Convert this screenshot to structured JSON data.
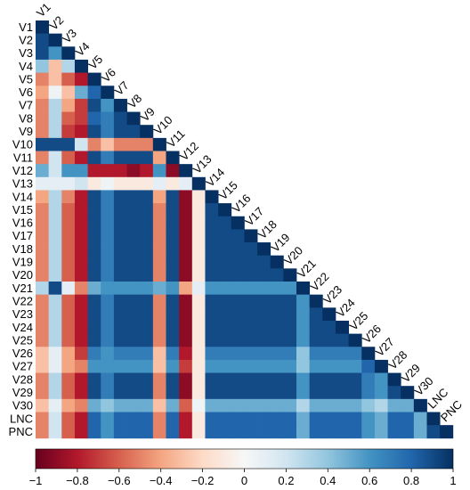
{
  "chart_data": {
    "type": "heatmap",
    "subtype": "lower-triangular correlation matrix",
    "variables": [
      "V1",
      "V2",
      "V3",
      "V4",
      "V5",
      "V6",
      "V7",
      "V8",
      "V9",
      "V10",
      "V11",
      "V12",
      "V13",
      "V14",
      "V15",
      "V16",
      "V17",
      "V18",
      "V19",
      "V20",
      "V21",
      "V22",
      "V23",
      "V24",
      "V25",
      "V26",
      "V27",
      "V28",
      "V29",
      "V30",
      "LNC",
      "PNC"
    ],
    "colorbar": {
      "range": [
        -1,
        1
      ],
      "ticks": [
        -1,
        -0.8,
        -0.6,
        -0.4,
        -0.2,
        0,
        0.2,
        0.4,
        0.6,
        0.8,
        1
      ],
      "tick_labels": [
        "−1",
        "−0.8",
        "−0.6",
        "−0.4",
        "−0.2",
        "0",
        "0.2",
        "0.4",
        "0.6",
        "0.8",
        "1"
      ],
      "colorscale": [
        "#67001f",
        "#b2182b",
        "#d6604d",
        "#f4a582",
        "#fddbc7",
        "#f7f7f7",
        "#d1e5f0",
        "#92c5de",
        "#4393c3",
        "#2166ac",
        "#053061"
      ],
      "position": "bottom"
    },
    "note": "values are approximate, estimated from cell colors; one row per variable, lower triangle including diagonal",
    "matrix": [
      [
        1
      ],
      [
        0.9,
        1
      ],
      [
        0.9,
        0.6,
        1
      ],
      [
        0.4,
        -0.3,
        0.3,
        1
      ],
      [
        -0.5,
        -0.3,
        -0.6,
        -0.8,
        1
      ],
      [
        -0.4,
        0.05,
        -0.3,
        0.5,
        0.8,
        1
      ],
      [
        -0.5,
        0.3,
        -0.4,
        -0.7,
        0.9,
        0.6,
        1
      ],
      [
        -0.5,
        0.3,
        -0.6,
        -0.7,
        0.8,
        0.7,
        0.9,
        1
      ],
      [
        -0.5,
        0.3,
        -0.7,
        -0.8,
        0.9,
        0.7,
        0.9,
        0.9,
        1
      ],
      [
        0.9,
        0.9,
        0.9,
        0.2,
        -0.5,
        -0.3,
        -0.5,
        -0.5,
        -0.5,
        1
      ],
      [
        -0.5,
        0.2,
        -0.6,
        -0.8,
        0.9,
        0.7,
        0.9,
        0.9,
        0.9,
        -0.4,
        1
      ],
      [
        0.5,
        0.2,
        0.6,
        0.6,
        -0.8,
        -0.8,
        -0.8,
        -0.9,
        -0.8,
        0.6,
        -0.9,
        1
      ],
      [
        0.1,
        0.1,
        0.1,
        0.2,
        -0.1,
        0.05,
        -0.1,
        -0.1,
        -0.1,
        0.1,
        -0.1,
        0.1,
        1
      ],
      [
        -0.4,
        0.3,
        -0.5,
        -0.8,
        0.9,
        0.7,
        0.9,
        0.9,
        0.9,
        -0.4,
        0.9,
        -0.9,
        -0.1,
        1
      ],
      [
        -0.5,
        0.3,
        -0.6,
        -0.8,
        0.9,
        0.7,
        0.9,
        0.9,
        0.9,
        -0.5,
        0.9,
        -0.9,
        -0.1,
        0.9,
        1
      ],
      [
        -0.5,
        0.3,
        -0.6,
        -0.8,
        0.9,
        0.7,
        0.9,
        0.9,
        0.9,
        -0.5,
        0.9,
        -0.9,
        -0.1,
        0.9,
        0.9,
        1
      ],
      [
        -0.5,
        0.3,
        -0.6,
        -0.8,
        0.9,
        0.7,
        0.9,
        0.9,
        0.9,
        -0.5,
        0.9,
        -0.9,
        -0.1,
        0.9,
        0.9,
        0.9,
        1
      ],
      [
        -0.5,
        0.3,
        -0.6,
        -0.8,
        0.9,
        0.7,
        0.9,
        0.9,
        0.9,
        -0.5,
        0.9,
        -0.9,
        -0.1,
        0.9,
        0.9,
        0.9,
        0.9,
        1
      ],
      [
        -0.5,
        0.3,
        -0.6,
        -0.8,
        0.9,
        0.7,
        0.9,
        0.9,
        0.9,
        -0.5,
        0.9,
        -0.9,
        -0.1,
        0.9,
        0.9,
        0.9,
        0.9,
        0.9,
        1
      ],
      [
        -0.5,
        0.3,
        -0.6,
        -0.8,
        0.9,
        0.7,
        0.9,
        0.9,
        0.9,
        -0.5,
        0.9,
        -0.9,
        -0.1,
        0.9,
        0.9,
        0.9,
        0.9,
        0.9,
        0.9,
        1
      ],
      [
        0.3,
        0.9,
        0.1,
        -0.5,
        0.5,
        0.6,
        0.6,
        0.6,
        0.6,
        0.5,
        0.6,
        -0.4,
        0.1,
        0.6,
        0.6,
        0.6,
        0.6,
        0.6,
        0.6,
        0.6,
        1
      ],
      [
        -0.5,
        0.3,
        -0.6,
        -0.8,
        0.9,
        0.7,
        0.9,
        0.9,
        0.9,
        -0.5,
        0.9,
        -0.9,
        -0.1,
        0.9,
        0.9,
        0.9,
        0.9,
        0.9,
        0.9,
        0.9,
        0.6,
        1
      ],
      [
        -0.5,
        0.3,
        -0.6,
        -0.8,
        0.9,
        0.7,
        0.9,
        0.9,
        0.9,
        -0.5,
        0.9,
        -0.9,
        -0.1,
        0.9,
        0.9,
        0.9,
        0.9,
        0.9,
        0.9,
        0.9,
        0.6,
        0.9,
        1
      ],
      [
        -0.5,
        0.3,
        -0.6,
        -0.8,
        0.9,
        0.7,
        0.9,
        0.9,
        0.9,
        -0.5,
        0.9,
        -0.9,
        -0.1,
        0.9,
        0.9,
        0.9,
        0.9,
        0.9,
        0.9,
        0.9,
        0.6,
        0.9,
        0.9,
        1
      ],
      [
        -0.5,
        0.3,
        -0.6,
        -0.8,
        0.9,
        0.7,
        0.9,
        0.9,
        0.9,
        -0.5,
        0.9,
        -0.9,
        -0.1,
        0.9,
        0.9,
        0.9,
        0.9,
        0.9,
        0.9,
        0.9,
        0.6,
        0.9,
        0.9,
        0.9,
        1
      ],
      [
        -0.3,
        0.1,
        -0.4,
        -0.7,
        0.7,
        0.6,
        0.7,
        0.7,
        0.7,
        -0.3,
        0.7,
        -0.8,
        -0.1,
        0.7,
        0.7,
        0.7,
        0.7,
        0.7,
        0.7,
        0.7,
        0.4,
        0.7,
        0.7,
        0.7,
        0.7,
        1
      ],
      [
        -0.3,
        0.1,
        -0.4,
        -0.5,
        0.6,
        0.6,
        0.6,
        0.6,
        0.6,
        -0.3,
        0.6,
        -0.7,
        -0.1,
        0.6,
        0.6,
        0.6,
        0.6,
        0.6,
        0.6,
        0.6,
        0.4,
        0.6,
        0.6,
        0.6,
        0.6,
        0.8,
        1
      ],
      [
        -0.5,
        0.3,
        -0.6,
        -0.8,
        0.9,
        0.7,
        0.9,
        0.9,
        0.9,
        -0.5,
        0.9,
        -0.9,
        -0.1,
        0.9,
        0.9,
        0.9,
        0.9,
        0.9,
        0.9,
        0.9,
        0.6,
        0.9,
        0.9,
        0.9,
        0.9,
        0.7,
        0.6,
        1
      ],
      [
        -0.5,
        0.3,
        -0.6,
        -0.8,
        0.9,
        0.7,
        0.9,
        0.9,
        0.9,
        -0.5,
        0.9,
        -0.9,
        -0.1,
        0.9,
        0.9,
        0.9,
        0.9,
        0.9,
        0.9,
        0.9,
        0.6,
        0.9,
        0.9,
        0.9,
        0.9,
        0.7,
        0.6,
        0.9,
        1
      ],
      [
        -0.3,
        0.1,
        -0.4,
        -0.5,
        0.5,
        0.4,
        0.5,
        0.5,
        0.5,
        -0.3,
        0.5,
        -0.6,
        0.05,
        0.5,
        0.5,
        0.5,
        0.5,
        0.5,
        0.5,
        0.5,
        0.3,
        0.5,
        0.5,
        0.5,
        0.5,
        0.4,
        0.3,
        0.5,
        0.5,
        1
      ],
      [
        -0.5,
        0.2,
        -0.6,
        -0.8,
        0.8,
        0.6,
        0.8,
        0.8,
        0.8,
        -0.5,
        0.8,
        -0.8,
        -0.1,
        0.8,
        0.8,
        0.8,
        0.8,
        0.8,
        0.8,
        0.8,
        0.5,
        0.8,
        0.8,
        0.8,
        0.8,
        0.6,
        0.5,
        0.8,
        0.8,
        0.5,
        1
      ],
      [
        -0.5,
        0.2,
        -0.6,
        -0.8,
        0.8,
        0.6,
        0.8,
        0.8,
        0.8,
        -0.5,
        0.8,
        -0.8,
        -0.1,
        0.8,
        0.8,
        0.8,
        0.8,
        0.8,
        0.8,
        0.8,
        0.5,
        0.8,
        0.8,
        0.8,
        0.8,
        0.6,
        0.5,
        0.8,
        0.8,
        0.5,
        0.9,
        1
      ]
    ]
  }
}
